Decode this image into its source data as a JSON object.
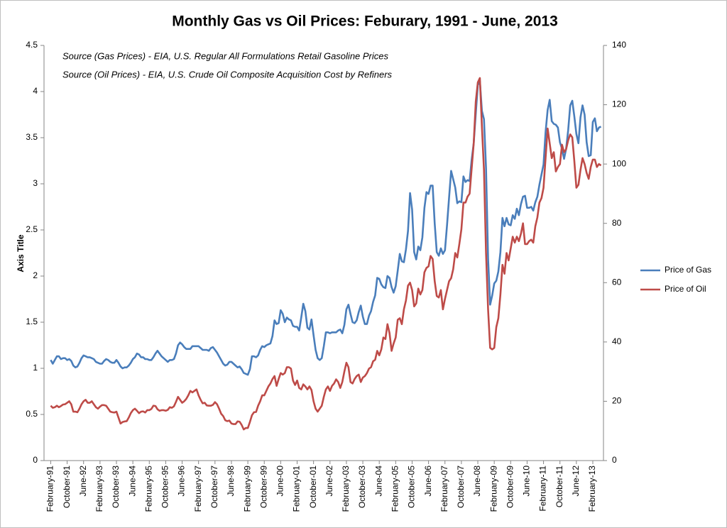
{
  "chart_data": {
    "type": "line",
    "title": "Monthly Gas vs Oil Prices: Feburary, 1991 - June, 2013",
    "annotations": [
      "Source (Gas Prices) - EIA, U.S. Regular All Formulations Retail Gasoline Prices",
      "Source (Oil Prices) - EIA, U.S. Crude Oil Composite Acquisition Cost by Refiners"
    ],
    "y_label": "Axis Title",
    "legend": "right",
    "ylim": [
      0,
      4.5
    ],
    "yticks": [
      0,
      0.5,
      1,
      1.5,
      2,
      2.5,
      3,
      3.5,
      4,
      4.5
    ],
    "y2lim": [
      0,
      140
    ],
    "y2ticks": [
      0,
      20,
      40,
      60,
      80,
      100,
      120,
      140
    ],
    "categories": [
      "February-91",
      null,
      null,
      null,
      null,
      null,
      null,
      null,
      "October-91",
      null,
      null,
      null,
      null,
      null,
      null,
      null,
      "June-92",
      null,
      null,
      null,
      null,
      null,
      null,
      null,
      "February-93",
      null,
      null,
      null,
      null,
      null,
      null,
      null,
      "October-93",
      null,
      null,
      null,
      null,
      null,
      null,
      null,
      "June-94",
      null,
      null,
      null,
      null,
      null,
      null,
      null,
      "February-95",
      null,
      null,
      null,
      null,
      null,
      null,
      null,
      "October-95",
      null,
      null,
      null,
      null,
      null,
      null,
      null,
      "June-96",
      null,
      null,
      null,
      null,
      null,
      null,
      null,
      "February-97",
      null,
      null,
      null,
      null,
      null,
      null,
      null,
      "October-97",
      null,
      null,
      null,
      null,
      null,
      null,
      null,
      "June-98",
      null,
      null,
      null,
      null,
      null,
      null,
      null,
      "February-99",
      null,
      null,
      null,
      null,
      null,
      null,
      null,
      "October-99",
      null,
      null,
      null,
      null,
      null,
      null,
      null,
      "June-00",
      null,
      null,
      null,
      null,
      null,
      null,
      null,
      "February-01",
      null,
      null,
      null,
      null,
      null,
      null,
      null,
      "October-01",
      null,
      null,
      null,
      null,
      null,
      null,
      null,
      "June-02",
      null,
      null,
      null,
      null,
      null,
      null,
      null,
      "February-03",
      null,
      null,
      null,
      null,
      null,
      null,
      null,
      "October-03",
      null,
      null,
      null,
      null,
      null,
      null,
      null,
      "June-04",
      null,
      null,
      null,
      null,
      null,
      null,
      null,
      "February-05",
      null,
      null,
      null,
      null,
      null,
      null,
      null,
      "October-05",
      null,
      null,
      null,
      null,
      null,
      null,
      null,
      "June-06",
      null,
      null,
      null,
      null,
      null,
      null,
      null,
      "February-07",
      null,
      null,
      null,
      null,
      null,
      null,
      null,
      "October-07",
      null,
      null,
      null,
      null,
      null,
      null,
      null,
      "June-08",
      null,
      null,
      null,
      null,
      null,
      null,
      null,
      "February-09",
      null,
      null,
      null,
      null,
      null,
      null,
      null,
      "October-09",
      null,
      null,
      null,
      null,
      null,
      null,
      null,
      "June-10",
      null,
      null,
      null,
      null,
      null,
      null,
      null,
      "February-11",
      null,
      null,
      null,
      null,
      null,
      null,
      null,
      "October-11",
      null,
      null,
      null,
      null,
      null,
      null,
      null,
      "June-12",
      null,
      null,
      null,
      null,
      null,
      null,
      null,
      "February-13",
      null,
      null,
      null,
      null
    ],
    "series": [
      {
        "name": "Price of Gas",
        "color": "#4a7ebb",
        "values": [
          1.09,
          1.05,
          1.09,
          1.13,
          1.13,
          1.1,
          1.11,
          1.11,
          1.09,
          1.1,
          1.08,
          1.03,
          1.01,
          1.02,
          1.06,
          1.11,
          1.14,
          1.13,
          1.12,
          1.12,
          1.11,
          1.1,
          1.07,
          1.06,
          1.05,
          1.05,
          1.08,
          1.1,
          1.09,
          1.07,
          1.06,
          1.06,
          1.09,
          1.06,
          1.02,
          1.0,
          1.01,
          1.01,
          1.03,
          1.06,
          1.1,
          1.12,
          1.16,
          1.15,
          1.12,
          1.12,
          1.1,
          1.1,
          1.09,
          1.09,
          1.12,
          1.16,
          1.19,
          1.16,
          1.13,
          1.11,
          1.09,
          1.07,
          1.09,
          1.09,
          1.1,
          1.16,
          1.25,
          1.28,
          1.26,
          1.23,
          1.21,
          1.21,
          1.21,
          1.24,
          1.24,
          1.24,
          1.24,
          1.22,
          1.2,
          1.2,
          1.2,
          1.19,
          1.22,
          1.23,
          1.2,
          1.17,
          1.13,
          1.09,
          1.05,
          1.03,
          1.04,
          1.07,
          1.07,
          1.05,
          1.03,
          1.01,
          1.02,
          0.99,
          0.95,
          0.94,
          0.93,
          0.99,
          1.13,
          1.13,
          1.12,
          1.14,
          1.2,
          1.24,
          1.23,
          1.25,
          1.26,
          1.27,
          1.35,
          1.52,
          1.48,
          1.49,
          1.63,
          1.59,
          1.5,
          1.55,
          1.53,
          1.52,
          1.46,
          1.45,
          1.45,
          1.41,
          1.55,
          1.7,
          1.62,
          1.44,
          1.42,
          1.53,
          1.36,
          1.2,
          1.11,
          1.09,
          1.11,
          1.24,
          1.39,
          1.39,
          1.38,
          1.39,
          1.39,
          1.39,
          1.41,
          1.42,
          1.38,
          1.47,
          1.64,
          1.69,
          1.59,
          1.5,
          1.49,
          1.52,
          1.61,
          1.68,
          1.56,
          1.48,
          1.48,
          1.57,
          1.62,
          1.72,
          1.79,
          1.98,
          1.97,
          1.91,
          1.88,
          1.87,
          2.0,
          1.98,
          1.88,
          1.82,
          1.89,
          2.06,
          2.24,
          2.16,
          2.15,
          2.29,
          2.49,
          2.9,
          2.72,
          2.26,
          2.18,
          2.32,
          2.28,
          2.42,
          2.74,
          2.91,
          2.89,
          2.98,
          2.98,
          2.57,
          2.26,
          2.22,
          2.3,
          2.24,
          2.28,
          2.55,
          2.85,
          3.14,
          3.05,
          2.96,
          2.79,
          2.81,
          2.8,
          3.08,
          3.02,
          3.04,
          3.03,
          3.26,
          3.44,
          3.76,
          4.07,
          4.11,
          3.79,
          3.7,
          3.17,
          2.19,
          1.69,
          1.79,
          1.92,
          1.95,
          2.05,
          2.26,
          2.63,
          2.54,
          2.63,
          2.56,
          2.55,
          2.66,
          2.62,
          2.73,
          2.66,
          2.78,
          2.86,
          2.87,
          2.74,
          2.74,
          2.75,
          2.71,
          2.8,
          2.86,
          2.99,
          3.1,
          3.21,
          3.56,
          3.8,
          3.91,
          3.68,
          3.65,
          3.64,
          3.61,
          3.45,
          3.38,
          3.27,
          3.38,
          3.58,
          3.85,
          3.9,
          3.73,
          3.54,
          3.44,
          3.72,
          3.85,
          3.75,
          3.45,
          3.3,
          3.31,
          3.67,
          3.71,
          3.57,
          3.61,
          3.62
        ]
      },
      {
        "name": "Price of Oil",
        "color": "#be4b48",
        "axis": "y2",
        "values": [
          18.5,
          17.8,
          18.0,
          18.5,
          18.0,
          18.4,
          18.9,
          19.0,
          19.5,
          20.0,
          19.0,
          16.5,
          16.5,
          16.3,
          17.5,
          19.0,
          20.0,
          20.5,
          19.5,
          19.5,
          20.0,
          19.0,
          18.0,
          17.5,
          18.2,
          18.7,
          18.7,
          18.5,
          17.5,
          16.5,
          16.3,
          16.2,
          16.5,
          14.5,
          12.5,
          13.0,
          13.2,
          13.3,
          14.5,
          16.0,
          17.0,
          17.5,
          16.8,
          16.0,
          16.5,
          16.6,
          16.2,
          17.0,
          17.0,
          17.4,
          18.5,
          18.4,
          17.3,
          16.8,
          17.0,
          17.0,
          16.8,
          17.1,
          18.0,
          17.8,
          18.3,
          19.8,
          21.5,
          20.5,
          19.5,
          20.0,
          20.8,
          22.0,
          23.5,
          23.0,
          23.5,
          24.0,
          22.0,
          20.5,
          19.3,
          19.5,
          18.6,
          18.5,
          18.5,
          18.8,
          19.7,
          19.0,
          17.5,
          15.8,
          15.0,
          13.6,
          13.3,
          13.5,
          12.5,
          12.3,
          12.3,
          13.2,
          13.1,
          12.0,
          10.5,
          11.0,
          11.0,
          13.0,
          15.3,
          16.3,
          16.4,
          18.5,
          20.0,
          22.0,
          22.0,
          23.5,
          25.0,
          26.0,
          27.5,
          28.5,
          25.2,
          27.5,
          29.5,
          29.0,
          29.5,
          31.5,
          31.5,
          31.0,
          27.0,
          25.5,
          27.0,
          24.5,
          24.0,
          25.7,
          25.0,
          24.0,
          25.0,
          23.8,
          20.0,
          17.5,
          16.5,
          17.5,
          18.5,
          21.5,
          24.0,
          25.0,
          23.5,
          25.2,
          26.0,
          27.4,
          26.5,
          24.5,
          26.5,
          30.0,
          33.0,
          31.5,
          26.5,
          26.0,
          27.5,
          28.5,
          29.0,
          26.5,
          28.0,
          28.5,
          29.5,
          31.0,
          31.5,
          33.5,
          34.0,
          37.0,
          35.5,
          37.5,
          41.5,
          41.0,
          46.0,
          43.0,
          37.0,
          39.5,
          41.5,
          47.5,
          48.0,
          46.0,
          51.0,
          54.0,
          59.0,
          60.0,
          57.5,
          52.0,
          53.0,
          58.0,
          56.0,
          57.5,
          63.5,
          65.0,
          65.5,
          69.0,
          68.0,
          60.5,
          55.5,
          55.0,
          57.5,
          51.0,
          54.5,
          57.5,
          60.5,
          61.5,
          64.5,
          70.0,
          68.5,
          73.0,
          78.0,
          87.0,
          87.0,
          89.0,
          90.0,
          98.5,
          107.0,
          121.0,
          127.5,
          129.0,
          112.5,
          98.0,
          70.0,
          51.0,
          38.0,
          37.5,
          38.0,
          45.0,
          48.0,
          56.0,
          66.0,
          63.0,
          70.0,
          67.5,
          71.5,
          75.5,
          73.5,
          75.5,
          74.0,
          76.5,
          80.0,
          73.0,
          73.0,
          74.0,
          74.5,
          73.5,
          79.0,
          82.0,
          87.0,
          88.5,
          92.0,
          102.0,
          112.0,
          107.0,
          102.0,
          104.0,
          97.5,
          99.0,
          100.0,
          106.5,
          104.0,
          105.0,
          108.0,
          110.0,
          109.0,
          101.0,
          92.0,
          93.0,
          98.0,
          102.0,
          100.0,
          97.0,
          95.0,
          99.0,
          101.5,
          101.5,
          99.0,
          100.0,
          99.5
        ]
      }
    ]
  }
}
